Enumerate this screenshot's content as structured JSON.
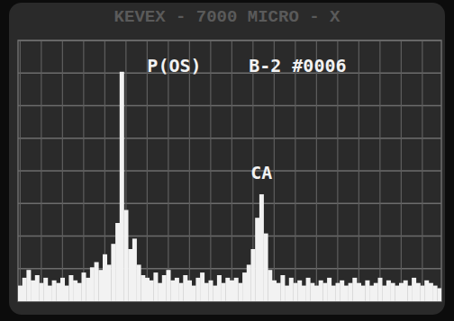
{
  "chart_data": {
    "type": "bar",
    "title": "KEVEX - 7000   MICRO - X",
    "x": [
      0,
      1,
      2,
      3,
      4,
      5,
      6,
      7,
      8,
      9,
      10,
      11,
      12,
      13,
      14,
      15,
      16,
      17,
      18,
      19,
      20,
      21,
      22,
      23,
      24,
      25,
      26,
      27,
      28,
      29,
      30,
      31,
      32,
      33,
      34,
      35,
      36,
      37,
      38,
      39,
      40,
      41,
      42,
      43,
      44,
      45,
      46,
      47,
      48,
      49,
      50,
      51,
      52,
      53,
      54,
      55,
      56,
      57,
      58,
      59,
      60,
      61,
      62,
      63,
      64,
      65,
      66,
      67,
      68,
      69,
      70,
      71,
      72,
      73,
      74,
      75,
      76,
      77,
      78,
      79,
      80,
      81,
      82,
      83,
      84,
      85,
      86,
      87,
      88,
      89,
      90,
      91,
      92,
      93,
      94,
      95,
      96,
      97,
      98,
      99
    ],
    "values": [
      6,
      9,
      12,
      8,
      10,
      7,
      9,
      6,
      8,
      7,
      9,
      6,
      10,
      8,
      7,
      11,
      9,
      13,
      15,
      12,
      18,
      14,
      22,
      30,
      88,
      35,
      20,
      24,
      14,
      10,
      9,
      8,
      11,
      7,
      10,
      12,
      8,
      9,
      7,
      10,
      8,
      6,
      9,
      11,
      7,
      8,
      6,
      10,
      7,
      9,
      8,
      9,
      7,
      11,
      14,
      20,
      32,
      41,
      26,
      12,
      8,
      7,
      10,
      6,
      9,
      7,
      8,
      6,
      9,
      7,
      6,
      8,
      7,
      9,
      6,
      7,
      8,
      6,
      7,
      9,
      7,
      6,
      8,
      6,
      7,
      9,
      6,
      8,
      7,
      6,
      7,
      8,
      6,
      9,
      7,
      6,
      8,
      7,
      6,
      5
    ],
    "color": "#f2f2f2",
    "xlim": [
      -0.5,
      99.5
    ],
    "ylim": [
      0,
      100
    ],
    "xticks": [
      0,
      5,
      10,
      15,
      20,
      25,
      30,
      35,
      40,
      45,
      50,
      55,
      60,
      65,
      70,
      75,
      80,
      85,
      90,
      95
    ],
    "yticks": [
      0,
      12.5,
      25,
      37.5,
      50,
      62.5,
      75,
      87.5,
      100
    ],
    "grid": true,
    "tick_labels": false,
    "annotations": [
      {
        "text": "P(OS)",
        "x": 30,
        "y": 88
      },
      {
        "text": "B-2 #0006",
        "x": 54,
        "y": 88
      },
      {
        "text": "CA",
        "x": 57,
        "y": 47
      }
    ]
  }
}
